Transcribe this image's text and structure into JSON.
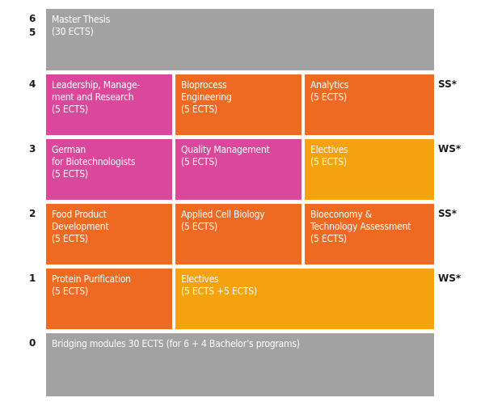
{
  "semesters": {
    "s6": "6",
    "s5": "5",
    "s4": "4",
    "s3": "3",
    "s2": "2",
    "s1": "1",
    "s0": "0"
  },
  "terms": {
    "row4": "SS*",
    "row3": "WS*",
    "row2": "SS*",
    "row1": "WS*"
  },
  "modules": {
    "master_thesis": {
      "title": "Master Thesis",
      "credits": "(30 ECTS)"
    },
    "leadership": {
      "title": "Leadership, Manage-\nment and Research",
      "credits": "(5 ECTS)"
    },
    "bioprocess": {
      "title": "Bioprocess\nEngineering",
      "credits": "(5 ECTS)"
    },
    "analytics": {
      "title": "Analytics",
      "credits": "(5 ECTS)"
    },
    "german": {
      "title": "German\nfor Biotechnologists",
      "credits": "(5 ECTS)"
    },
    "quality": {
      "title": "Quality Management",
      "credits": "(5 ECTS)"
    },
    "electives_3": {
      "title": "Electives",
      "credits": "(5 ECTS)"
    },
    "food_product": {
      "title": "Food Product\nDevelopment",
      "credits": "(5 ECTS)"
    },
    "cell_biology": {
      "title": "Applied Cell Biology",
      "credits": "(5 ECTS)"
    },
    "bioeconomy": {
      "title": "Bioeconomy &\nTechnology Assessment",
      "credits": "(5 ECTS)"
    },
    "protein": {
      "title": "Protein Purification",
      "credits": "(5 ECTS)"
    },
    "electives_1": {
      "title": "Electives",
      "credits": "(5 ECTS +5 ECTS)"
    },
    "bridging": {
      "title": "Bridging modules 30 ECTS (for 6 + 4 Bachelor’s  programs)"
    }
  },
  "colors": {
    "gray": "#a2a2a2",
    "pink": "#d9489a",
    "orange": "#ee6a23",
    "yellow": "#f5a20e"
  }
}
